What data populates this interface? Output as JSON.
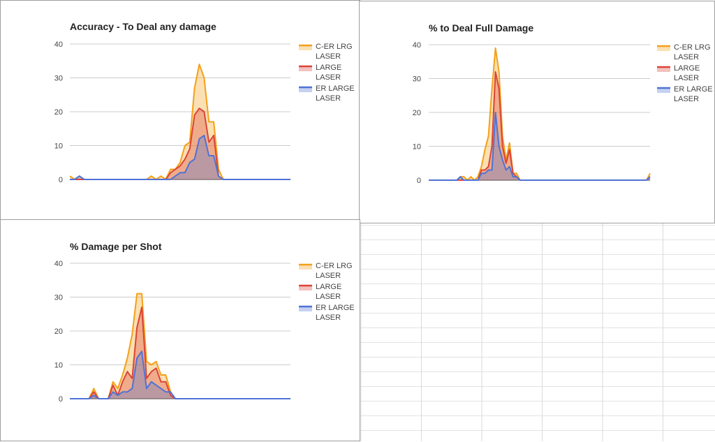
{
  "colors": {
    "orange": "#f4a019",
    "red": "#db4437",
    "blue": "#4f72d6"
  },
  "chart_data": [
    {
      "type": "area",
      "title": "Accuracy - To Deal any damage",
      "ylim": [
        0,
        40
      ],
      "yticks": [
        "0",
        "10",
        "20",
        "30",
        "40"
      ],
      "x": [
        0,
        1,
        2,
        3,
        4,
        5,
        6,
        7,
        8,
        9,
        10,
        11,
        12,
        13,
        14,
        15,
        16,
        17,
        18,
        19,
        20,
        21,
        22,
        23,
        24,
        25,
        26,
        27,
        28,
        29,
        30,
        31,
        32,
        33,
        34,
        35,
        36,
        37,
        38,
        39,
        40,
        41,
        42,
        43,
        44,
        45,
        46
      ],
      "series": [
        {
          "name": "C-ER LRG LASER",
          "color": "#f4a019",
          "values": [
            1,
            0,
            1,
            0,
            0,
            0,
            0,
            0,
            0,
            0,
            0,
            0,
            0,
            0,
            0,
            0,
            0,
            1,
            0,
            1,
            0,
            3,
            3,
            5,
            10,
            11,
            27,
            34,
            30,
            17,
            17,
            3,
            0,
            0,
            0,
            0,
            0,
            0,
            0,
            0,
            0,
            0,
            0,
            0,
            0,
            0,
            0
          ]
        },
        {
          "name": "LARGE LASER",
          "color": "#db4437",
          "values": [
            0,
            0,
            0,
            0,
            0,
            0,
            0,
            0,
            0,
            0,
            0,
            0,
            0,
            0,
            0,
            0,
            0,
            0,
            0,
            0,
            0,
            2,
            3,
            4,
            6,
            9,
            19,
            21,
            20,
            11,
            13,
            1,
            0,
            0,
            0,
            0,
            0,
            0,
            0,
            0,
            0,
            0,
            0,
            0,
            0,
            0,
            0
          ]
        },
        {
          "name": "ER LARGE LASER",
          "color": "#4f72d6",
          "values": [
            0,
            0,
            1,
            0,
            0,
            0,
            0,
            0,
            0,
            0,
            0,
            0,
            0,
            0,
            0,
            0,
            0,
            0,
            0,
            0,
            0,
            0,
            1,
            2,
            2,
            5,
            6,
            12,
            13,
            7,
            7,
            1,
            0,
            0,
            0,
            0,
            0,
            0,
            0,
            0,
            0,
            0,
            0,
            0,
            0,
            0,
            0
          ]
        }
      ]
    },
    {
      "type": "area",
      "title": "% to Deal Full Damage",
      "ylim": [
        0,
        40
      ],
      "yticks": [
        "0",
        "10",
        "20",
        "30",
        "40"
      ],
      "x": [
        0,
        1,
        2,
        3,
        4,
        5,
        6,
        7,
        8,
        9,
        10,
        11,
        12,
        13,
        14,
        15,
        16,
        17,
        18,
        19,
        20,
        21,
        22,
        23,
        24,
        25,
        26,
        27,
        28,
        29,
        30,
        31,
        32,
        33,
        34,
        35,
        36,
        37,
        38,
        39,
        40,
        41,
        42,
        43,
        44,
        45,
        46,
        47,
        48,
        49,
        50,
        51,
        52,
        53,
        54,
        55,
        56,
        57,
        58,
        59,
        60,
        61,
        62,
        63
      ],
      "series": [
        {
          "name": "C-ER LRG LASER",
          "color": "#f4a019",
          "values": [
            0,
            0,
            0,
            0,
            0,
            0,
            0,
            0,
            0,
            1,
            1,
            0,
            1,
            0,
            1,
            4,
            9,
            13,
            27,
            39,
            32,
            13,
            6,
            11,
            2,
            2,
            0,
            0,
            0,
            0,
            0,
            0,
            0,
            0,
            0,
            0,
            0,
            0,
            0,
            0,
            0,
            0,
            0,
            0,
            0,
            0,
            0,
            0,
            0,
            0,
            0,
            0,
            0,
            0,
            0,
            0,
            0,
            0,
            0,
            0,
            0,
            0,
            0,
            2
          ]
        },
        {
          "name": "LARGE LASER",
          "color": "#db4437",
          "values": [
            0,
            0,
            0,
            0,
            0,
            0,
            0,
            0,
            0,
            0,
            0,
            0,
            0,
            0,
            0,
            3,
            3,
            4,
            10,
            32,
            27,
            10,
            5,
            9,
            2,
            1,
            0,
            0,
            0,
            0,
            0,
            0,
            0,
            0,
            0,
            0,
            0,
            0,
            0,
            0,
            0,
            0,
            0,
            0,
            0,
            0,
            0,
            0,
            0,
            0,
            0,
            0,
            0,
            0,
            0,
            0,
            0,
            0,
            0,
            0,
            0,
            0,
            0,
            1
          ]
        },
        {
          "name": "ER LARGE LASER",
          "color": "#4f72d6",
          "values": [
            0,
            0,
            0,
            0,
            0,
            0,
            0,
            0,
            0,
            1,
            0,
            0,
            0,
            0,
            0,
            2,
            2,
            3,
            3,
            20,
            10,
            6,
            3,
            4,
            1,
            1,
            0,
            0,
            0,
            0,
            0,
            0,
            0,
            0,
            0,
            0,
            0,
            0,
            0,
            0,
            0,
            0,
            0,
            0,
            0,
            0,
            0,
            0,
            0,
            0,
            0,
            0,
            0,
            0,
            0,
            0,
            0,
            0,
            0,
            0,
            0,
            0,
            0,
            1
          ]
        }
      ]
    },
    {
      "type": "area",
      "title": "% Damage per Shot",
      "ylim": [
        0,
        40
      ],
      "yticks": [
        "0",
        "10",
        "20",
        "30",
        "40"
      ],
      "x": [
        0,
        1,
        2,
        3,
        4,
        5,
        6,
        7,
        8,
        9,
        10,
        11,
        12,
        13,
        14,
        15,
        16,
        17,
        18,
        19,
        20,
        21,
        22,
        23,
        24,
        25,
        26,
        27,
        28,
        29,
        30,
        31,
        32,
        33,
        34,
        35,
        36,
        37,
        38,
        39,
        40,
        41,
        42,
        43,
        44,
        45,
        46
      ],
      "series": [
        {
          "name": "C-ER LRG LASER",
          "color": "#f4a019",
          "values": [
            0,
            0,
            0,
            0,
            0,
            3,
            0,
            0,
            0,
            5,
            3,
            7,
            12,
            19,
            31,
            31,
            11,
            10,
            11,
            7,
            7,
            2,
            0,
            0,
            0,
            0,
            0,
            0,
            0,
            0,
            0,
            0,
            0,
            0,
            0,
            0,
            0,
            0,
            0,
            0,
            0,
            0,
            0,
            0,
            0,
            0,
            0
          ]
        },
        {
          "name": "LARGE LASER",
          "color": "#db4437",
          "values": [
            0,
            0,
            0,
            0,
            0,
            2,
            0,
            0,
            0,
            4,
            1,
            5,
            8,
            6,
            21,
            27,
            6,
            8,
            9,
            5,
            5,
            1,
            0,
            0,
            0,
            0,
            0,
            0,
            0,
            0,
            0,
            0,
            0,
            0,
            0,
            0,
            0,
            0,
            0,
            0,
            0,
            0,
            0,
            0,
            0,
            0,
            0
          ]
        },
        {
          "name": "ER LARGE LASER",
          "color": "#4f72d6",
          "values": [
            0,
            0,
            0,
            0,
            0,
            1,
            0,
            0,
            0,
            2,
            1,
            2,
            2,
            3,
            12,
            14,
            3,
            5,
            4,
            3,
            2,
            2,
            0,
            0,
            0,
            0,
            0,
            0,
            0,
            0,
            0,
            0,
            0,
            0,
            0,
            0,
            0,
            0,
            0,
            0,
            0,
            0,
            0,
            0,
            0,
            0,
            0
          ]
        }
      ]
    }
  ]
}
